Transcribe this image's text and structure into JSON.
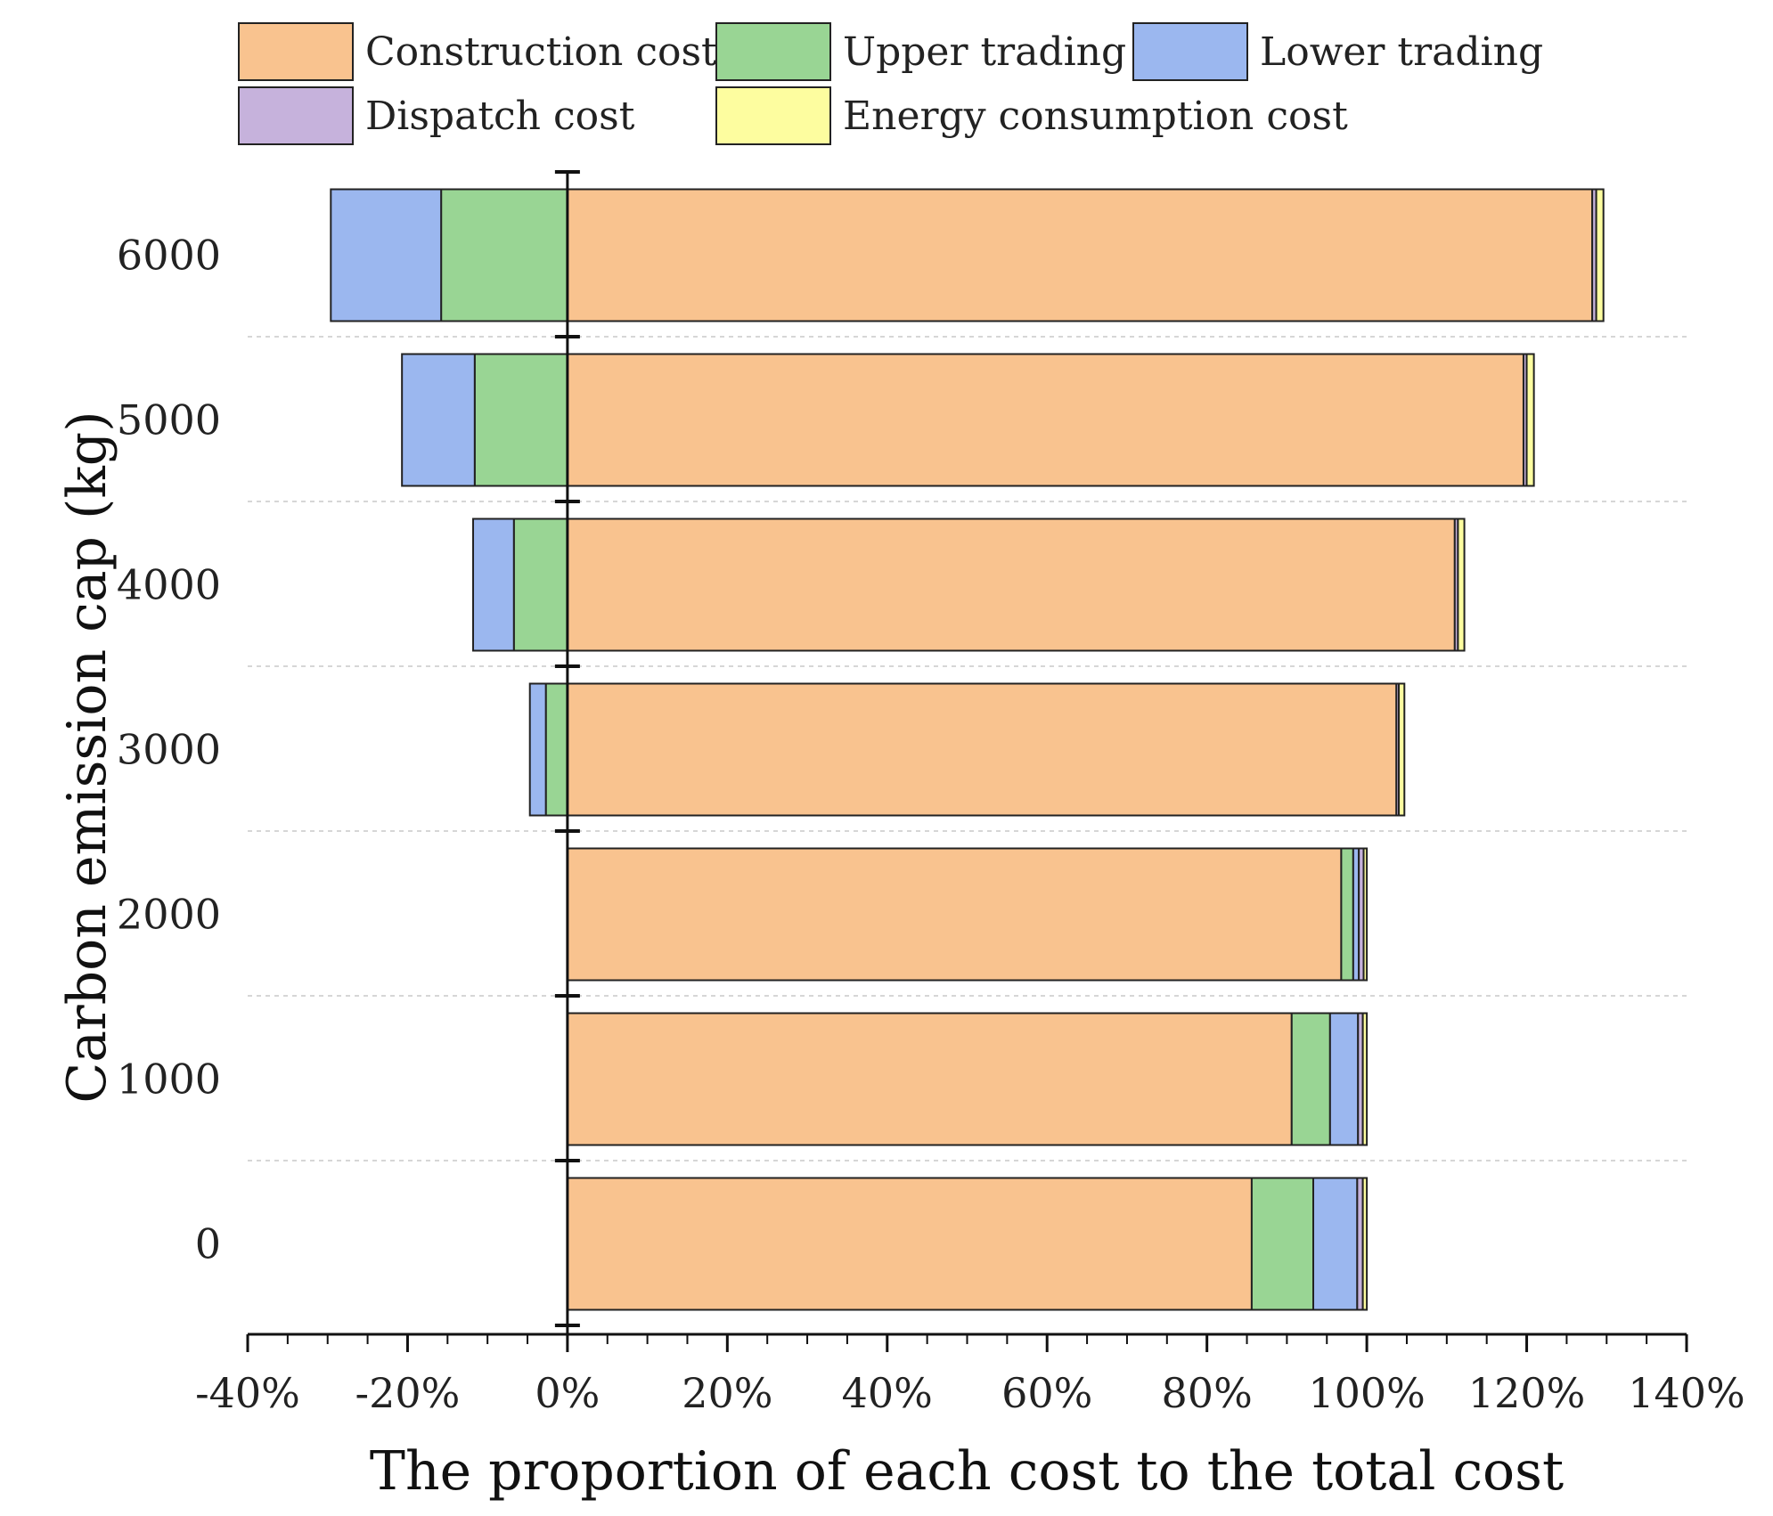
{
  "chart_data": {
    "type": "bar",
    "orientation": "horizontal",
    "stacked": true,
    "title": "",
    "xlabel": "The proportion of each cost to the total cost",
    "ylabel": "Carbon emission cap (kg)",
    "xlim": [
      -40,
      140
    ],
    "x_ticks": [
      "-40%",
      "-20%",
      "0%",
      "20%",
      "40%",
      "60%",
      "80%",
      "100%",
      "120%",
      "140%"
    ],
    "x_tick_values": [
      -40,
      -20,
      0,
      20,
      40,
      60,
      80,
      100,
      120,
      140
    ],
    "categories": [
      "6000",
      "5000",
      "4000",
      "3000",
      "2000",
      "1000",
      "0"
    ],
    "series": [
      {
        "name": "Construction cost",
        "color": "#f9c38f",
        "values": [
          128.2,
          119.6,
          111.0,
          103.7,
          96.8,
          90.6,
          85.6
        ]
      },
      {
        "name": "Upper trading",
        "color": "#99d594",
        "values": [
          -15.8,
          -11.6,
          -6.7,
          -2.7,
          1.5,
          4.8,
          7.7
        ]
      },
      {
        "name": "Lower trading",
        "color": "#9bb7ef",
        "values": [
          -13.8,
          -9.1,
          -5.1,
          -2.0,
          0.7,
          3.5,
          5.5
        ]
      },
      {
        "name": "Dispatch cost",
        "color": "#c6b2dc",
        "values": [
          0.5,
          0.4,
          0.4,
          0.3,
          0.6,
          0.6,
          0.7
        ]
      },
      {
        "name": "Energy consumption cost",
        "color": "#fdfd9f",
        "values": [
          0.9,
          0.9,
          0.8,
          0.7,
          0.4,
          0.5,
          0.5
        ]
      }
    ],
    "legend": {
      "placement": "top",
      "entries": [
        "Construction cost",
        "Upper trading",
        "Lower trading",
        "Dispatch cost",
        "Energy consumption cost"
      ]
    },
    "grid": "dashed horizontal separators between categories"
  }
}
